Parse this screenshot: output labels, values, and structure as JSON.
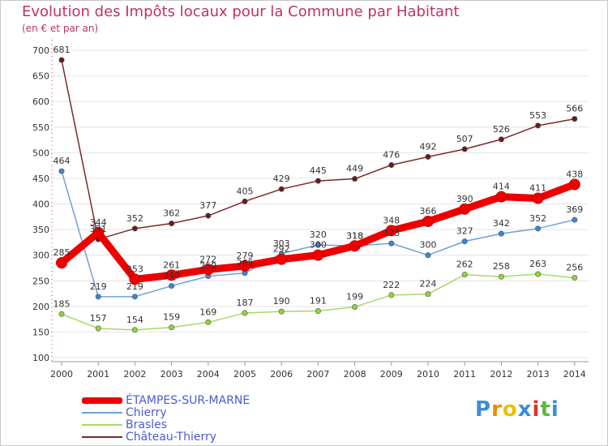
{
  "chart_title": "Evolution des Impôts locaux pour la Commune par Habitant",
  "chart_subtitle": "(en € et par an)",
  "logo_text": "Proxiti",
  "chart_data": {
    "type": "line",
    "x": [
      2000,
      2001,
      2002,
      2003,
      2004,
      2005,
      2006,
      2007,
      2008,
      2009,
      2010,
      2011,
      2012,
      2013,
      2014
    ],
    "ylim": [
      100,
      700
    ],
    "yticks": [
      100,
      150,
      200,
      250,
      300,
      350,
      400,
      450,
      500,
      550,
      600,
      650,
      700
    ],
    "grid": "horizontal",
    "legend_position": "bottom-left",
    "series": [
      {
        "name": "ÉTAMPES-SUR-MARNE",
        "color": "#ee0000",
        "marker_color": "#ee0000",
        "line_style": "thick",
        "values": [
          285,
          344,
          253,
          261,
          272,
          279,
          292,
          300,
          318,
          348,
          366,
          390,
          414,
          411,
          438
        ],
        "labels": [
          "285",
          "344",
          "253",
          "261",
          "272",
          "279",
          "292",
          "300",
          "318",
          "348",
          "366",
          "390",
          "414",
          "411",
          "438"
        ]
      },
      {
        "name": "Chierry",
        "color": "#6aa2d8",
        "marker_color": "#3a86d6",
        "line_style": "thin",
        "values": [
          464,
          219,
          219,
          240,
          259,
          265,
          303,
          320,
          318,
          323,
          300,
          327,
          342,
          352,
          369
        ],
        "labels": [
          "464",
          "219",
          "219",
          "240",
          "259",
          "265",
          "303",
          "320",
          "318",
          "323",
          "300",
          "327",
          "342",
          "352",
          "369"
        ]
      },
      {
        "name": "Brasles",
        "color": "#a6d86a",
        "marker_color": "#8fd43a",
        "line_style": "thin",
        "values": [
          185,
          157,
          154,
          159,
          169,
          187,
          190,
          191,
          199,
          222,
          224,
          262,
          258,
          263,
          256
        ],
        "labels": [
          "185",
          "157",
          "154",
          "159",
          "169",
          "187",
          "190",
          "191",
          "199",
          "222",
          "224",
          "262",
          "258",
          "263",
          "256"
        ]
      },
      {
        "name": "Château-Thierry",
        "color": "#7a2a2a",
        "marker_color": "#6a1a1a",
        "line_style": "thin",
        "values": [
          681,
          331,
          352,
          362,
          377,
          405,
          429,
          445,
          449,
          476,
          492,
          507,
          526,
          553,
          566
        ],
        "labels": [
          "681",
          "331",
          "352",
          "362",
          "377",
          "405",
          "429",
          "445",
          "449",
          "476",
          "492",
          "507",
          "526",
          "553",
          "566"
        ]
      }
    ]
  }
}
